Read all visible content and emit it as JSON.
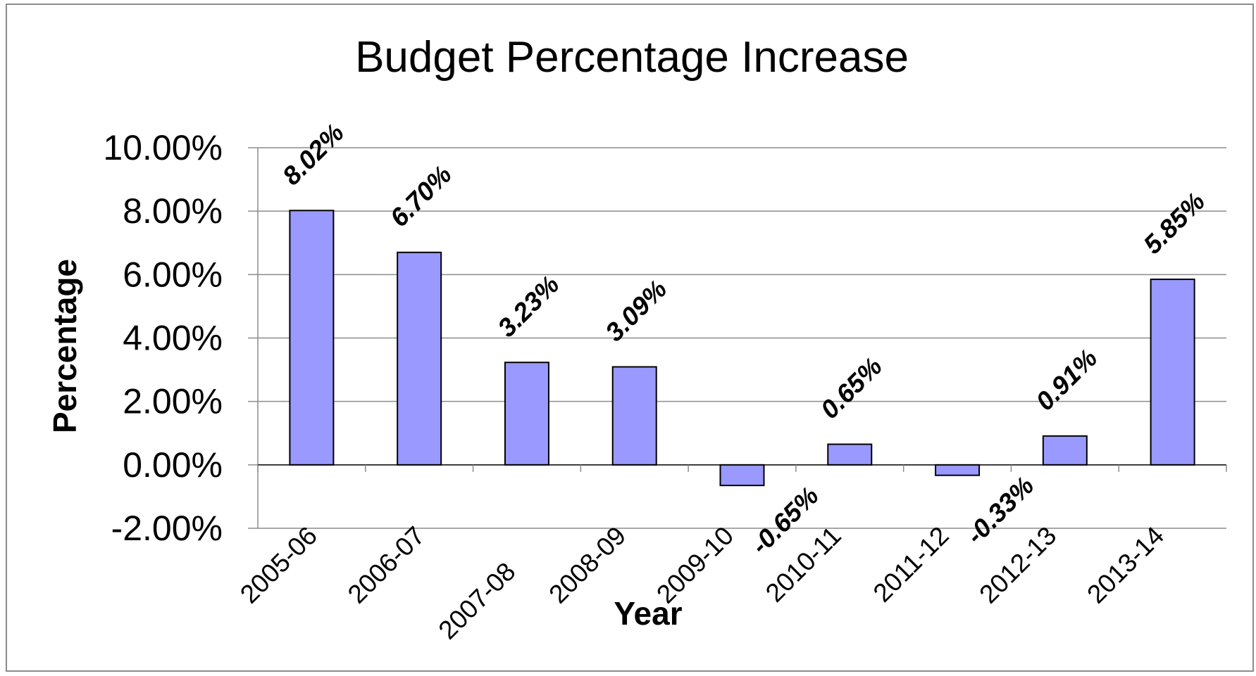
{
  "chart_data": {
    "type": "bar",
    "title": "Budget Percentage Increase",
    "xlabel": "Year",
    "ylabel": "Percentage",
    "categories": [
      "2005-06",
      "2006-07",
      "2007-08",
      "2008-09",
      "2009-10",
      "2010-11",
      "2011-12",
      "2012-13",
      "2013-14"
    ],
    "series": [
      {
        "values": [
          8.02,
          6.7,
          3.23,
          3.09,
          -0.65,
          0.65,
          -0.33,
          0.91,
          5.85
        ],
        "labels": [
          "8.02%",
          "6.70%",
          "3.23%",
          "3.09%",
          "-0.65%",
          "0.65%",
          "-0.33%",
          "0.91%",
          "5.85%"
        ],
        "color": "#9999ff"
      }
    ],
    "ylim": [
      -2,
      10
    ],
    "yticks": [
      -2,
      0,
      2,
      4,
      6,
      8,
      10
    ],
    "ytick_labels": [
      "-2.00%",
      "0.00%",
      "2.00%",
      "4.00%",
      "6.00%",
      "8.00%",
      "10.00%"
    ],
    "grid": true,
    "legend": "none",
    "label_rotation_deg": -45
  }
}
